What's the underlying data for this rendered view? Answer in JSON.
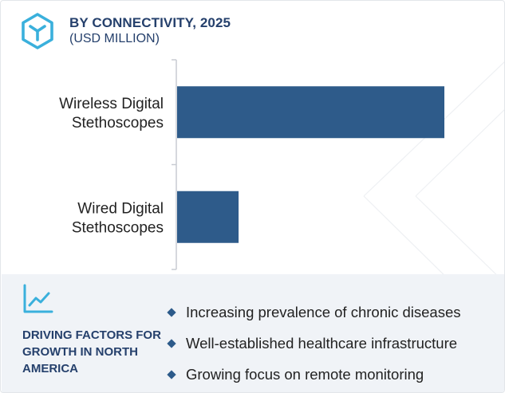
{
  "header": {
    "title": "BY CONNECTIVITY, 2025",
    "subtitle": "(USD MILLION)",
    "logo_icon": "hexagon-cube-logo-icon",
    "accent_color": "#25406c"
  },
  "chart_data": {
    "type": "bar",
    "orientation": "horizontal",
    "categories": [
      "Wireless Digital Stethoscopes",
      "Wired Digital Stethoscopes"
    ],
    "category_lines": [
      [
        "Wireless Digital",
        "Stethoscopes"
      ],
      [
        "Wired Digital",
        "Stethoscopes"
      ]
    ],
    "values": [
      100,
      23
    ],
    "value_scale": "relative (no numeric axis shown)",
    "bar_color": "#2e5b8a",
    "grid": false,
    "legend": "none"
  },
  "drivers": {
    "icon": "line-chart-icon",
    "heading_lines": [
      "DRIVING FACTORS FOR",
      "GROWTH IN NORTH",
      "AMERICA"
    ],
    "items": [
      "Increasing prevalence of chronic diseases",
      "Well-established healthcare infrastructure",
      "Growing focus on remote monitoring"
    ],
    "bullet_icon": "diamond-bullet-icon"
  }
}
